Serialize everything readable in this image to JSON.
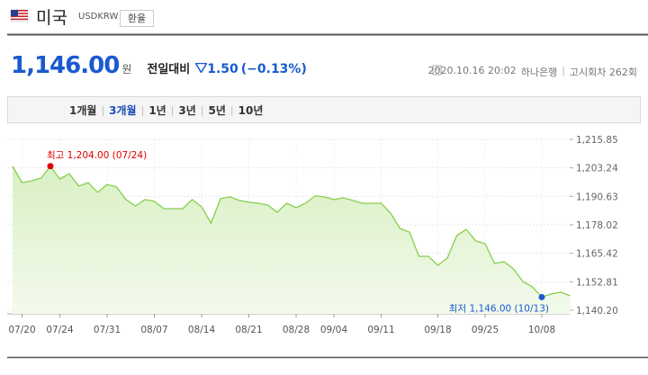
{
  "header": {
    "title": "미국",
    "code": "USDKRW",
    "button": "환율"
  },
  "quote": {
    "price": "1,146.00",
    "unit": "원",
    "change_label": "전일대비",
    "change": "1.50",
    "change_pct": "(−0.13%)",
    "datetime": "2020.10.16 20:02",
    "bank": "하나은행",
    "round": "고시회차 262회"
  },
  "tabs": [
    {
      "label": "1개월",
      "selected": false
    },
    {
      "label": "3개월",
      "selected": true
    },
    {
      "label": "1년",
      "selected": false
    },
    {
      "label": "3년",
      "selected": false
    },
    {
      "label": "5년",
      "selected": false
    },
    {
      "label": "10년",
      "selected": false
    }
  ],
  "chart_data": {
    "type": "line",
    "color": "#86cf4c",
    "values": [
      1203.9,
      1196.7,
      1197.5,
      1198.7,
      1204.0,
      1198.3,
      1200.7,
      1195.2,
      1196.7,
      1192.4,
      1195.9,
      1194.8,
      1189.2,
      1186.4,
      1189.2,
      1188.4,
      1185.2,
      1185.2,
      1185.2,
      1189.2,
      1186.0,
      1178.8,
      1189.6,
      1190.4,
      1188.8,
      1188.0,
      1187.6,
      1186.8,
      1183.6,
      1187.6,
      1185.6,
      1187.6,
      1190.8,
      1190.4,
      1189.2,
      1190.0,
      1188.8,
      1187.6,
      1187.6,
      1187.6,
      1183.2,
      1176.4,
      1174.8,
      1164.1,
      1164.1,
      1160.1,
      1163.3,
      1173.3,
      1176.0,
      1170.9,
      1169.7,
      1160.9,
      1161.7,
      1158.5,
      1152.9,
      1150.6,
      1146.0,
      1147.4,
      1148.2,
      1146.6
    ],
    "high_label": "최고 1,204.00 (07/24)",
    "high_color": "#e00000",
    "low_label": "최저 1,146.00 (10/13)",
    "low_color": "#1a5ad1",
    "xlim": [
      0,
      59
    ],
    "xticks": [
      {
        "value": 1,
        "label": "07/20"
      },
      {
        "value": 5,
        "label": "07/24"
      },
      {
        "value": 10,
        "label": "07/31"
      },
      {
        "value": 15,
        "label": "08/07"
      },
      {
        "value": 20,
        "label": "08/14"
      },
      {
        "value": 25,
        "label": "08/21"
      },
      {
        "value": 30,
        "label": "08/28"
      },
      {
        "value": 34,
        "label": "09/04"
      },
      {
        "value": 39,
        "label": "09/11"
      },
      {
        "value": 45,
        "label": "09/18"
      },
      {
        "value": 50,
        "label": "09/25"
      },
      {
        "value": 56,
        "label": "10/08"
      }
    ],
    "ylim": [
      1140.2,
      1215.85
    ],
    "yticks": [
      {
        "value": 1215.85,
        "label": "1,215.85"
      },
      {
        "value": 1203.24,
        "label": "1,203.24"
      },
      {
        "value": 1190.63,
        "label": "1,190.63"
      },
      {
        "value": 1178.02,
        "label": "1,178.02"
      },
      {
        "value": 1165.42,
        "label": "1,165.42"
      },
      {
        "value": 1152.81,
        "label": "1,152.81"
      },
      {
        "value": 1140.2,
        "label": "1,140.20"
      }
    ],
    "grid": true
  }
}
